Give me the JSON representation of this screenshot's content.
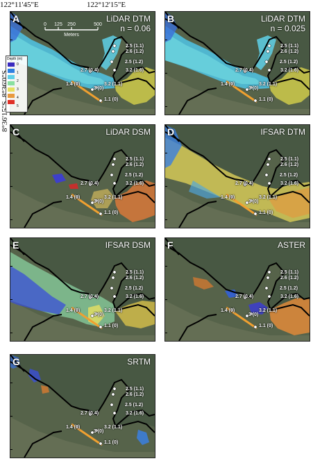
{
  "top_coords": [
    "122°11'45\"E",
    "122°12'15\"E"
  ],
  "left_coords": [
    "8°36'0\"S",
    "8°36'15\"S"
  ],
  "scale": {
    "label": "Meters",
    "ticks": [
      "0",
      "125",
      "250",
      "500"
    ]
  },
  "legend": {
    "title": "Depth (m)",
    "items": [
      "0",
      "1",
      "2",
      "3",
      "4",
      "5"
    ],
    "colors": [
      "#3a2bbf",
      "#2f7fe0",
      "#5fd0e8",
      "#8ae0a0",
      "#e6e060",
      "#e89a40",
      "#e03028"
    ]
  },
  "stations": [
    "2.5 (1.1)",
    "2.6 (1.2)",
    "2.5 (1.2)",
    "2.7 (0.4)",
    "3.2 (1.6)",
    "1.4 (0)",
    "3.2 (1.1)",
    "3 (0)",
    "1.1 (0)"
  ],
  "panels": [
    {
      "letter": "A",
      "title": "LiDAR DTM",
      "subtitle": "n = 0.06",
      "scheme": "lidar"
    },
    {
      "letter": "B",
      "title": "LiDAR DTM",
      "subtitle": "n = 0.025",
      "scheme": "lidar"
    },
    {
      "letter": "C",
      "title": "LiDAR DSM",
      "subtitle": "",
      "scheme": "dsm"
    },
    {
      "letter": "D",
      "title": "IFSAR DTM",
      "subtitle": "",
      "scheme": "ifsar"
    },
    {
      "letter": "E",
      "title": "IFSAR DSM",
      "subtitle": "",
      "scheme": "ifsardsm"
    },
    {
      "letter": "F",
      "title": "ASTER",
      "subtitle": "",
      "scheme": "aster"
    },
    {
      "letter": "G",
      "title": "SRTM",
      "subtitle": "",
      "scheme": "srtm"
    }
  ]
}
